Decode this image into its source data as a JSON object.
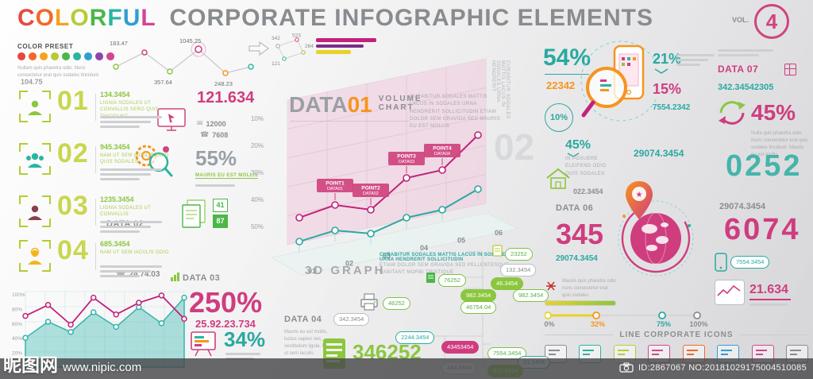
{
  "header": {
    "title_letters": [
      {
        "ch": "C",
        "color": "#e8483f"
      },
      {
        "ch": "O",
        "color": "#f2682a"
      },
      {
        "ch": "L",
        "color": "#f6a21d"
      },
      {
        "ch": "O",
        "color": "#b5cc34"
      },
      {
        "ch": "R",
        "color": "#4cb748"
      },
      {
        "ch": "F",
        "color": "#2bb5a0"
      },
      {
        "ch": "U",
        "color": "#2f9fd0"
      },
      {
        "ch": "L",
        "color": "#d4468f"
      }
    ],
    "title_rest": "CORPORATE INFOGRAPHIC ELEMENTS",
    "vol_label": "VOL.",
    "vol_number": "4"
  },
  "color_preset": {
    "label": "COLOR PRESET",
    "swatches": [
      "#e8483f",
      "#f2682a",
      "#f6a21d",
      "#b5cc34",
      "#4cb748",
      "#2bb5a0",
      "#2f9fd0",
      "#8e44ad",
      "#d4468f"
    ],
    "caption": "Nullam quis pharetra odio. Nunc consectetur erat quis sodales tincidunt",
    "value": "104.75"
  },
  "top_chart": {
    "labels": [
      "183.47",
      "1045.25",
      "357.64",
      "248.23"
    ]
  },
  "node_cluster": {
    "numbers": [
      "342",
      "523",
      "121",
      "264"
    ]
  },
  "left_items": [
    {
      "num": "01",
      "value": "134.3454",
      "caption": "LIGNIA SODALES UT CONVALLIS SERO QUIS TINCIDUNT",
      "side_value": "121.634",
      "stat1": "12000",
      "stat2": "7608"
    },
    {
      "num": "02",
      "value": "945.3454",
      "caption": "NAM UT SEM IACULIS ODIO QUIS SODALES",
      "percent": "55%",
      "link": "MAURIS EU EST MOLLIS"
    },
    {
      "num": "03",
      "value": "1235.3454",
      "caption": "LIGNIA SODALES UT CONVALLIS",
      "data_label": "DATA 02",
      "badge1": "41",
      "badge2": "87"
    },
    {
      "num": "04",
      "value": "685.3454",
      "caption": "NAM UT SEM IACULIS ODIO",
      "data_label": "DATA 03",
      "phone_value": "24.74.03"
    }
  ],
  "axis_scale": [
    "10%",
    "20%",
    "30%",
    "40%",
    "50%"
  ],
  "big_stats": {
    "percent_250": "250%",
    "sub_250": "25.92.23.734",
    "percent_34": "34%"
  },
  "volume_chart": {
    "title_main": "DATA",
    "title_num": "01",
    "subtitle_line1": "VOLUME",
    "subtitle_line2": "CHART",
    "paragraph": "CURABITUR SODALES MATTIS LACUS IN SODALES URNA HENDRERIT SOLLICITUDIN ETIAM DOLOR SEM GRAVIDA SED MAURIS EU EST MOLLIS",
    "footer": "3D GRAPH",
    "caption_line1": "CURABITUR SODALES MATTIS LACUS IN SODALES URNA HENDRERIT SOLLICITUDIN",
    "caption_line2": "ETIAM DOLOR SEM GRAVIDA SED PELLENTESQUE HABITANT MORBI TRISTIQUE",
    "side_text": "CURABITUR SODALES MATTIS LACUS IN SODALES URNA HENDRERIT",
    "side_number": "02"
  },
  "data04": {
    "label": "DATA 04",
    "pill": "342.3454",
    "paragraph": "Mauris eu est mollis, luctus sapien nec, vestibulum ligula. Nam ut sem iaculis.",
    "big_value": "346252",
    "printer_value": "46252"
  },
  "pills": [
    {
      "text": "23252",
      "style": "go"
    },
    {
      "text": "132.3454",
      "style": "gy"
    },
    {
      "text": "76252",
      "style": "go"
    },
    {
      "text": "46.3454",
      "style": "gs"
    },
    {
      "text": "982.3454",
      "style": "gs"
    },
    {
      "text": "982.3454",
      "style": "go"
    },
    {
      "text": "46754.04",
      "style": "go"
    },
    {
      "text": "2244.3454",
      "style": "to"
    },
    {
      "text": "43453454",
      "style": "ms"
    },
    {
      "text": "7554.3454",
      "style": "go"
    },
    {
      "text": "31.3454",
      "style": "to"
    },
    {
      "text": "144.3454",
      "style": "gy"
    },
    {
      "text": "872.3454",
      "style": "gs"
    }
  ],
  "right_top": {
    "p54": "54%",
    "v22342": "22342",
    "p21": "21%",
    "p15": "15%",
    "v7554": "7554.2342",
    "p10": "10%"
  },
  "data07": {
    "label": "DATA 07",
    "value": "342.34542305",
    "percent": "45%",
    "paragraph": "Nulla quis pharetra odio. Nunc consectetur erat quis sodales tincidunt. Mauris eu est mollis."
  },
  "right_mid": {
    "p45": "45%",
    "p45_caption": "IN POSUERE ELEIFEND ODIO QUIS SODALES",
    "house_value": "022.3454",
    "data06_label": "DATA 06",
    "v29074_a": "29074.3454",
    "v345": "345",
    "v29074_b": "29074.3454",
    "v0252": "0252",
    "v29074_c": "29074.3454",
    "v6074": "6074",
    "phone_pill": "7554.3454",
    "mauris_caption": "Mauris quis pharetra odio nunc consectetur erat quis sodales",
    "v21634": "21.634"
  },
  "line_icons": {
    "label": "LINE CORPORATE ICONS",
    "icons": [
      {
        "name": "printer-icon",
        "color": "#8a8d90"
      },
      {
        "name": "fax-icon",
        "color": "#2bb5a0"
      },
      {
        "name": "monitor-icon",
        "color": "#b5cc34"
      },
      {
        "name": "document-icon",
        "color": "#d4468f"
      },
      {
        "name": "mail-icon",
        "color": "#f2682a"
      },
      {
        "name": "calculator-icon",
        "color": "#2f9fd0"
      },
      {
        "name": "camera-icon",
        "color": "#d4468f"
      },
      {
        "name": "pie-chart-icon",
        "color": "#8a8d90"
      }
    ]
  },
  "watermark": {
    "site_name": "昵图网",
    "site_url": "www.nipic.com",
    "id_text": "ID:2867067 NO:20181029175004510085"
  },
  "chart_data": [
    {
      "type": "line",
      "name": "mini-trend",
      "point_labels": [
        "183.47",
        "1045.25",
        "357.64",
        "248.23"
      ],
      "values": [
        38,
        60,
        30,
        72,
        25,
        40
      ]
    },
    {
      "type": "area",
      "name": "bottom-left-area",
      "yticks": [
        "100%",
        "80%",
        "60%",
        "40%",
        "20%"
      ],
      "series": [
        {
          "name": "area-teal",
          "values": [
            40,
            62,
            48,
            75,
            55,
            82,
            60,
            95
          ]
        },
        {
          "name": "line-magenta",
          "values": [
            70,
            85,
            58,
            95,
            72,
            88,
            98,
            66
          ]
        }
      ]
    },
    {
      "type": "line3d",
      "name": "volume-chart",
      "xticks": [
        "01",
        "02",
        "03",
        "04",
        "05",
        "06"
      ],
      "series": [
        {
          "name": "magenta",
          "values": [
            20,
            28,
            25,
            45,
            50,
            72
          ]
        },
        {
          "name": "teal",
          "values": [
            5,
            12,
            10,
            20,
            25,
            38
          ]
        }
      ],
      "point_flags": [
        "POINT1 DATA01",
        "POINT2 DATA02",
        "POINT3 DATA03",
        "POINT4 DATA04"
      ]
    },
    {
      "type": "progress",
      "name": "bottom-progress",
      "ticks": [
        "0%",
        "32%",
        "75%",
        "100%"
      ]
    }
  ]
}
